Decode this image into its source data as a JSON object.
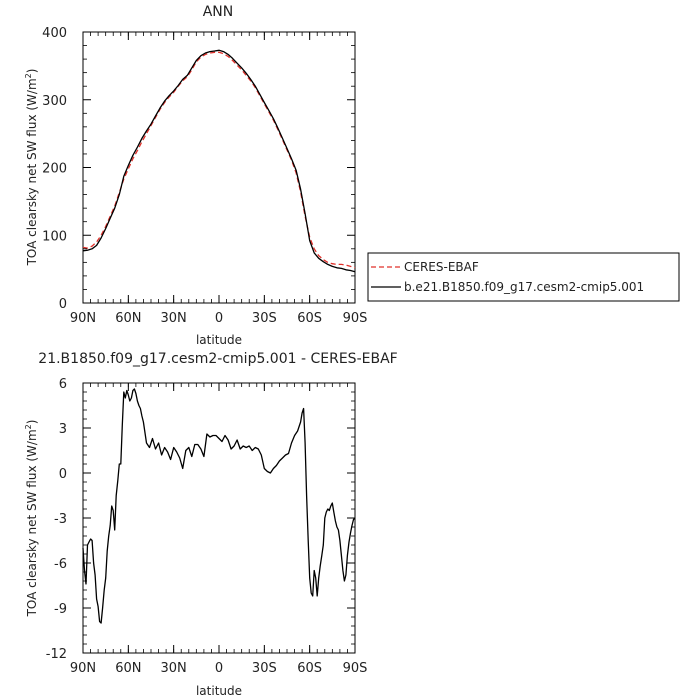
{
  "chart_data": [
    {
      "type": "line",
      "title": "ANN",
      "xlabel": "latitude",
      "ylabel": "TOA clearsky net SW flux (W/m²)",
      "ylabel_base": "TOA clearsky net SW flux (W/m",
      "ylabel_sup": "2",
      "ylabel_end": ")",
      "xlim": [
        90,
        -90
      ],
      "ylim": [
        0,
        400
      ],
      "x_ticks": [
        90,
        60,
        30,
        0,
        -30,
        -60,
        -90
      ],
      "x_tick_labels": [
        "90N",
        "60N",
        "30N",
        "0",
        "30S",
        "60S",
        "90S"
      ],
      "y_ticks": [
        0,
        100,
        200,
        300,
        400
      ],
      "y_tick_labels": [
        "0",
        "100",
        "200",
        "300",
        "400"
      ],
      "grid": false,
      "legend_position": "right",
      "series": [
        {
          "name": "CERES-EBAF",
          "color": "#e0302a",
          "dash": true,
          "x": [
            90,
            87,
            84,
            81,
            78,
            75,
            72,
            69,
            66,
            63,
            60,
            57,
            54,
            51,
            48,
            45,
            42,
            39,
            36,
            33,
            30,
            27,
            24,
            21,
            18,
            15,
            12,
            9,
            6,
            3,
            0,
            -3,
            -6,
            -9,
            -12,
            -15,
            -18,
            -21,
            -24,
            -27,
            -30,
            -33,
            -36,
            -39,
            -42,
            -45,
            -48,
            -51,
            -54,
            -57,
            -60,
            -63,
            -66,
            -69,
            -72,
            -75,
            -78,
            -81,
            -84,
            -87,
            -90
          ],
          "y": [
            82,
            81,
            84,
            90,
            100,
            113,
            128,
            143,
            163,
            183,
            198,
            213,
            225,
            238,
            250,
            262,
            274,
            286,
            296,
            304,
            311,
            320,
            328,
            334,
            344,
            356,
            363,
            367,
            369,
            370,
            370,
            368,
            364,
            358,
            351,
            344,
            336,
            328,
            318,
            306,
            294,
            282,
            270,
            256,
            241,
            226,
            211,
            192,
            164,
            128,
            97,
            80,
            70,
            64,
            60,
            58,
            57,
            57,
            56,
            54,
            52
          ]
        },
        {
          "name": "b.e21.B1850.f09_g17.cesm2-cmip5.001",
          "color": "#000000",
          "dash": false,
          "x": [
            90,
            87,
            84,
            81,
            78,
            75,
            72,
            69,
            66,
            63,
            60,
            57,
            54,
            51,
            48,
            45,
            42,
            39,
            36,
            33,
            30,
            27,
            24,
            21,
            18,
            15,
            12,
            9,
            6,
            3,
            0,
            -3,
            -6,
            -9,
            -12,
            -15,
            -18,
            -21,
            -24,
            -27,
            -30,
            -33,
            -36,
            -39,
            -42,
            -45,
            -48,
            -51,
            -54,
            -57,
            -60,
            -63,
            -66,
            -69,
            -72,
            -75,
            -78,
            -81,
            -84,
            -87,
            -90
          ],
          "y": [
            77,
            78,
            80,
            85,
            96,
            110,
            125,
            140,
            160,
            187,
            203,
            218,
            230,
            243,
            254,
            264,
            276,
            288,
            298,
            306,
            313,
            321,
            330,
            336,
            347,
            358,
            365,
            369,
            371,
            372,
            373,
            371,
            367,
            361,
            354,
            347,
            339,
            330,
            320,
            308,
            296,
            284,
            272,
            258,
            243,
            228,
            213,
            196,
            168,
            132,
            92,
            74,
            66,
            61,
            57,
            54,
            52,
            51,
            49,
            48,
            46
          ]
        }
      ]
    },
    {
      "type": "line",
      "title": "21.B1850.f09_g17.cesm2-cmip5.001 - CERES-EBAF",
      "xlabel": "latitude",
      "ylabel": "TOA clearsky net SW flux (W/m²)",
      "ylabel_base": "TOA clearsky net SW flux (W/m",
      "ylabel_sup": "2",
      "ylabel_end": ")",
      "xlim": [
        90,
        -90
      ],
      "ylim": [
        -12,
        6
      ],
      "x_ticks": [
        90,
        60,
        30,
        0,
        -30,
        -60,
        -90
      ],
      "x_tick_labels": [
        "90N",
        "60N",
        "30N",
        "0",
        "30S",
        "60S",
        "90S"
      ],
      "y_ticks": [
        6,
        3,
        0,
        -3,
        -6,
        -9,
        -12
      ],
      "y_tick_labels": [
        "6",
        "3",
        "0",
        "-3",
        "-6",
        "-9",
        "-12"
      ],
      "grid": false,
      "series": [
        {
          "name": "",
          "color": "#000000",
          "dash": false,
          "x": [
            90,
            89,
            88,
            87,
            86,
            85,
            84,
            83,
            82,
            81,
            80,
            79,
            78,
            77,
            76,
            75,
            74,
            73,
            72,
            71,
            70,
            69,
            68,
            67,
            66,
            65,
            64,
            63,
            62,
            61,
            60,
            59,
            58,
            57,
            56,
            55,
            54,
            53,
            52,
            51,
            50,
            48,
            46,
            44,
            42,
            40,
            38,
            36,
            34,
            32,
            30,
            28,
            26,
            24,
            22,
            20,
            18,
            16,
            14,
            12,
            10,
            8,
            6,
            4,
            2,
            0,
            -2,
            -4,
            -6,
            -8,
            -10,
            -12,
            -14,
            -16,
            -18,
            -20,
            -22,
            -24,
            -26,
            -28,
            -30,
            -32,
            -34,
            -36,
            -38,
            -40,
            -42,
            -44,
            -46,
            -48,
            -50,
            -52,
            -54,
            -55,
            -56,
            -57,
            -58,
            -59,
            -60,
            -61,
            -62,
            -63,
            -64,
            -65,
            -66,
            -67,
            -68,
            -69,
            -70,
            -71,
            -72,
            -73,
            -74,
            -75,
            -76,
            -77,
            -78,
            -79,
            -80,
            -81,
            -82,
            -83,
            -84,
            -85,
            -86,
            -87,
            -88,
            -89,
            -90
          ],
          "y": [
            -5.0,
            -6.5,
            -7.4,
            -4.8,
            -4.6,
            -4.4,
            -4.5,
            -6.0,
            -6.8,
            -8.4,
            -8.9,
            -9.9,
            -10.0,
            -9.0,
            -7.8,
            -7.0,
            -5.2,
            -4.2,
            -3.5,
            -2.2,
            -2.5,
            -3.8,
            -1.5,
            -0.5,
            0.6,
            0.6,
            3.2,
            5.4,
            5.0,
            5.5,
            5.2,
            4.8,
            5.0,
            5.5,
            5.6,
            5.3,
            4.8,
            4.5,
            4.3,
            3.8,
            3.4,
            2.0,
            1.7,
            2.3,
            1.6,
            2.0,
            1.2,
            1.7,
            1.4,
            0.9,
            1.7,
            1.4,
            1.0,
            0.3,
            1.5,
            1.7,
            1.1,
            1.9,
            1.9,
            1.6,
            1.1,
            2.6,
            2.4,
            2.5,
            2.5,
            2.3,
            2.1,
            2.5,
            2.2,
            1.6,
            1.8,
            2.2,
            1.6,
            1.8,
            1.7,
            1.8,
            1.5,
            1.7,
            1.6,
            1.2,
            0.3,
            0.1,
            0.0,
            0.3,
            0.5,
            0.8,
            1.0,
            1.2,
            1.3,
            2.0,
            2.5,
            2.8,
            3.4,
            4.0,
            4.3,
            2.0,
            -1.5,
            -4.5,
            -7.0,
            -8.0,
            -8.2,
            -6.5,
            -7.0,
            -8.2,
            -7.0,
            -6.2,
            -5.5,
            -4.8,
            -3.0,
            -2.6,
            -2.4,
            -2.5,
            -2.2,
            -2.0,
            -2.6,
            -3.2,
            -3.6,
            -3.8,
            -4.5,
            -5.5,
            -6.5,
            -7.2,
            -6.8,
            -5.5,
            -4.6,
            -4.0,
            -3.5,
            -3.1,
            -3.0
          ]
        }
      ]
    }
  ]
}
